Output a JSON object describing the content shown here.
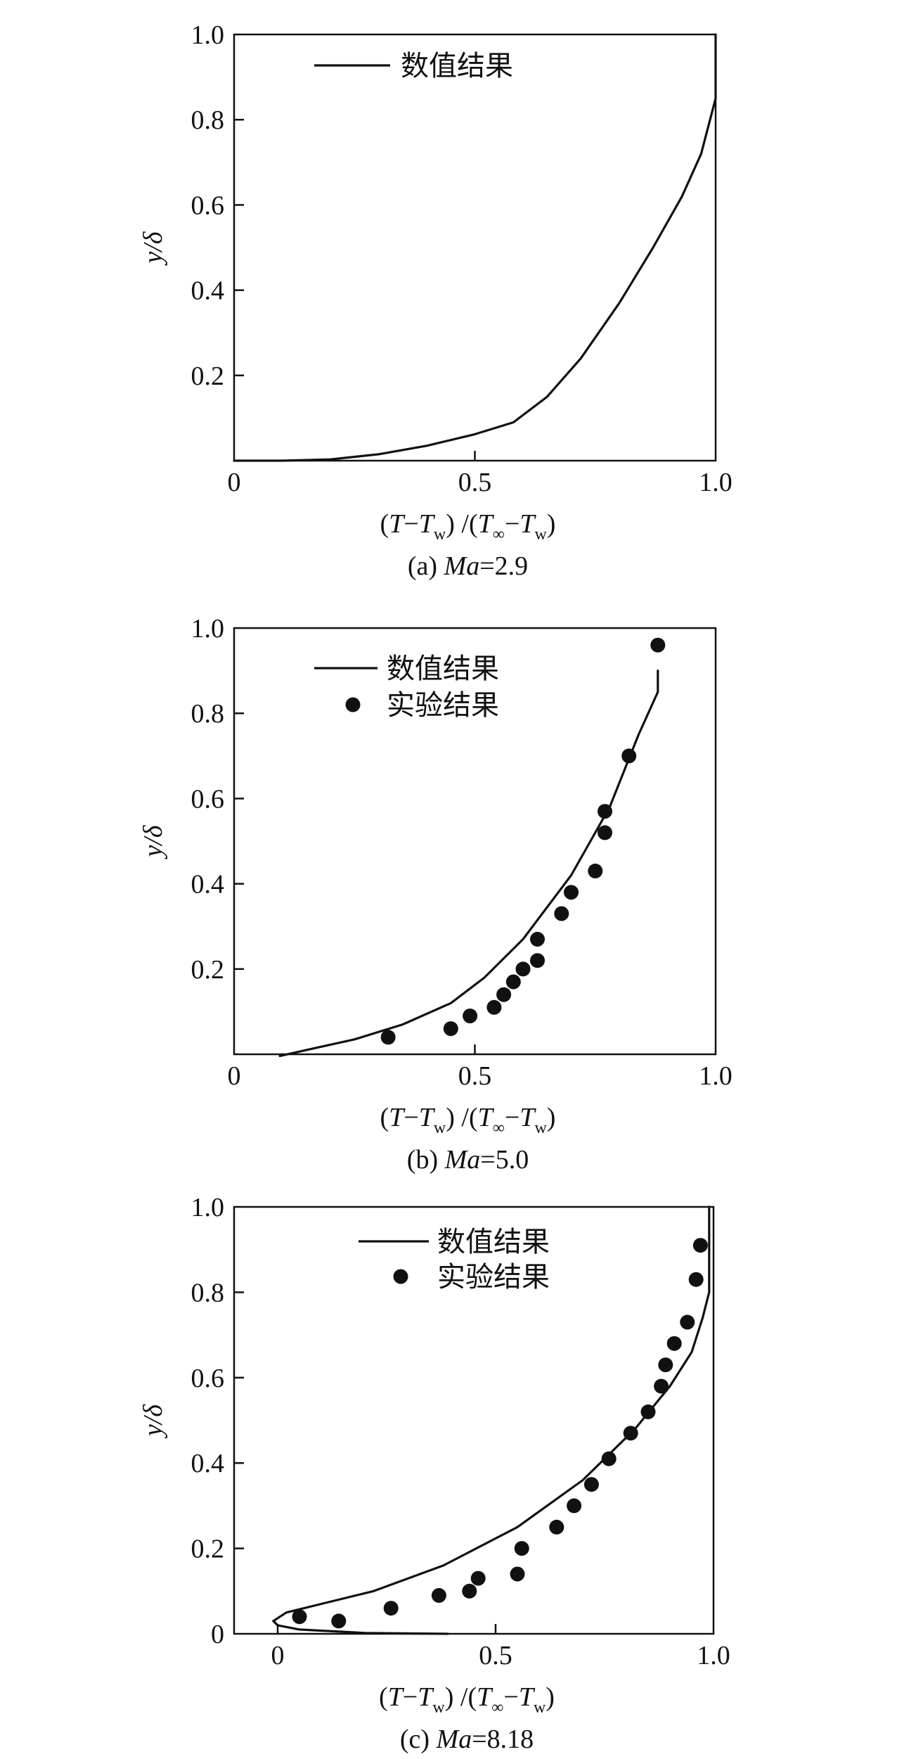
{
  "figure": {
    "panels": [
      {
        "caption_prefix": "(a) ",
        "caption_var": "Ma",
        "caption_value": "=2.9",
        "ylabel": "y/δ",
        "xlabel_parts": [
          "(",
          "T",
          "−",
          "T",
          "w",
          ") /(",
          "T",
          "∞",
          "−",
          "T",
          "w",
          ")"
        ],
        "xticks": [
          "0",
          "0.5",
          "1.0"
        ],
        "yticks": [
          "0.2",
          "0.4",
          "0.6",
          "0.8",
          "1.0"
        ],
        "legend": {
          "line_label": "数值结果",
          "dot_label": ""
        }
      },
      {
        "caption_prefix": "(b) ",
        "caption_var": "Ma",
        "caption_value": "=5.0",
        "ylabel": "y/δ",
        "xlabel_parts": [
          "(",
          "T",
          "−",
          "T",
          "w",
          ") /(",
          "T",
          "∞",
          "−",
          "T",
          "w",
          ")"
        ],
        "xticks": [
          "0",
          "0.5",
          "1.0"
        ],
        "yticks": [
          "0.2",
          "0.4",
          "0.6",
          "0.8",
          "1.0"
        ],
        "legend": {
          "line_label": "数值结果",
          "dot_label": "实验结果"
        }
      },
      {
        "caption_prefix": "(c) ",
        "caption_var": "Ma",
        "caption_value": "=8.18",
        "ylabel": "y/δ",
        "xlabel_parts": [
          "(",
          "T",
          "−",
          "T",
          "w",
          ") /(",
          "T",
          "∞",
          "−",
          "T",
          "w",
          ")"
        ],
        "xticks": [
          "0",
          "0.5",
          "1.0"
        ],
        "yticks": [
          "0",
          "0.2",
          "0.4",
          "0.6",
          "0.8",
          "1.0"
        ],
        "legend": {
          "line_label": "数值结果",
          "dot_label": "实验结果"
        }
      }
    ]
  },
  "chart_data": [
    {
      "type": "line",
      "title": "(a) Ma=2.9",
      "xlabel": "(T−Tw) /(T∞−Tw)",
      "ylabel": "y/δ",
      "xlim": [
        0,
        1.0
      ],
      "ylim": [
        0,
        1.0
      ],
      "series": [
        {
          "name": "数值结果",
          "kind": "line",
          "x": [
            0.0,
            0.1,
            0.2,
            0.3,
            0.4,
            0.5,
            0.58,
            0.65,
            0.72,
            0.8,
            0.87,
            0.93,
            0.97,
            1.0,
            1.0
          ],
          "y": [
            0.0,
            0.0,
            0.003,
            0.015,
            0.035,
            0.062,
            0.09,
            0.15,
            0.24,
            0.37,
            0.5,
            0.62,
            0.72,
            0.85,
            1.0
          ]
        }
      ]
    },
    {
      "type": "line",
      "title": "(b) Ma=5.0",
      "xlabel": "(T−Tw) /(T∞−Tw)",
      "ylabel": "y/δ",
      "xlim": [
        0,
        1.0
      ],
      "ylim": [
        0,
        1.0
      ],
      "series": [
        {
          "name": "数值结果",
          "kind": "line",
          "x": [
            0.1,
            0.095,
            0.15,
            0.25,
            0.35,
            0.45,
            0.52,
            0.6,
            0.7,
            0.78,
            0.84,
            0.88,
            0.88
          ],
          "y": [
            0.0,
            -0.004,
            0.01,
            0.035,
            0.07,
            0.12,
            0.18,
            0.27,
            0.42,
            0.58,
            0.75,
            0.85,
            0.9
          ]
        },
        {
          "name": "实验结果",
          "kind": "scatter",
          "x": [
            0.32,
            0.45,
            0.49,
            0.54,
            0.56,
            0.58,
            0.6,
            0.63,
            0.63,
            0.68,
            0.7,
            0.75,
            0.77,
            0.77,
            0.82,
            0.88
          ],
          "y": [
            0.04,
            0.06,
            0.09,
            0.11,
            0.14,
            0.17,
            0.2,
            0.22,
            0.27,
            0.33,
            0.38,
            0.43,
            0.52,
            0.57,
            0.7,
            0.96
          ]
        }
      ]
    },
    {
      "type": "line",
      "title": "(c) Ma=8.18",
      "xlabel": "(T−Tw) /(T∞−Tw)",
      "ylabel": "y/δ",
      "xlim": [
        -0.1,
        1.0
      ],
      "ylim": [
        0,
        1.0
      ],
      "series": [
        {
          "name": "数值结果",
          "kind": "line",
          "x": [
            0.39,
            0.2,
            0.05,
            0.0,
            -0.01,
            0.02,
            0.1,
            0.22,
            0.38,
            0.55,
            0.7,
            0.82,
            0.9,
            0.95,
            0.975,
            0.99,
            0.99
          ],
          "y": [
            0.0,
            0.002,
            0.01,
            0.02,
            0.03,
            0.05,
            0.07,
            0.1,
            0.16,
            0.25,
            0.36,
            0.48,
            0.58,
            0.66,
            0.74,
            0.8,
            1.0
          ]
        },
        {
          "name": "实验结果",
          "kind": "scatter",
          "x": [
            0.05,
            0.14,
            0.26,
            0.37,
            0.44,
            0.46,
            0.55,
            0.56,
            0.64,
            0.68,
            0.72,
            0.76,
            0.81,
            0.85,
            0.88,
            0.89,
            0.91,
            0.94,
            0.96,
            0.97
          ],
          "y": [
            0.04,
            0.03,
            0.06,
            0.09,
            0.1,
            0.13,
            0.14,
            0.2,
            0.25,
            0.3,
            0.35,
            0.41,
            0.47,
            0.52,
            0.58,
            0.63,
            0.68,
            0.73,
            0.83,
            0.91
          ]
        }
      ]
    }
  ]
}
